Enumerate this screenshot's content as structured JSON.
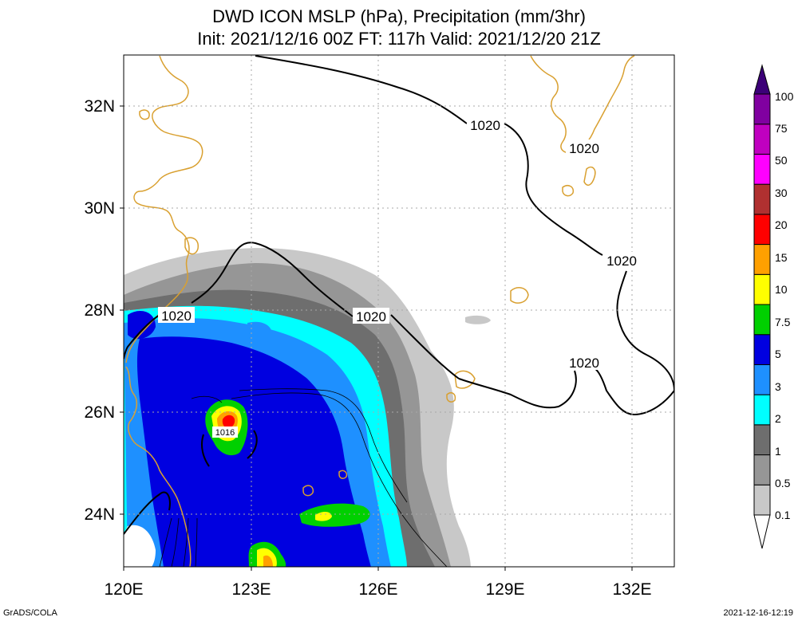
{
  "header": {
    "title_line1": "DWD ICON MSLP (hPa), Precipitation (mm/3hr)",
    "title_line2": "Init: 2021/12/16 00Z  FT: 117h  Valid: 2021/12/20 21Z"
  },
  "axes": {
    "lon_labels": [
      "120E",
      "123E",
      "126E",
      "129E",
      "132E"
    ],
    "lat_labels": [
      "24N",
      "26N",
      "28N",
      "30N",
      "32N"
    ]
  },
  "isobars": {
    "labels": [
      "1020",
      "1020",
      "1020",
      "1020",
      "1020",
      "1020",
      "1016"
    ]
  },
  "colorbar": {
    "labels": [
      "0.1",
      "0.5",
      "1",
      "2",
      "3",
      "5",
      "7.5",
      "10",
      "15",
      "20",
      "30",
      "50",
      "75",
      "100"
    ],
    "colors": [
      "#c8c8c8",
      "#969696",
      "#6e6e6e",
      "#00ffff",
      "#1e90ff",
      "#0000e0",
      "#00d000",
      "#ffff00",
      "#ffa000",
      "#ff0000",
      "#b03030",
      "#ff00ff",
      "#c000c0",
      "#8000a0",
      "#3c0078"
    ]
  },
  "footer": {
    "credit": "GrADS/COLA",
    "timestamp": "2021-12-16-12:19"
  }
}
